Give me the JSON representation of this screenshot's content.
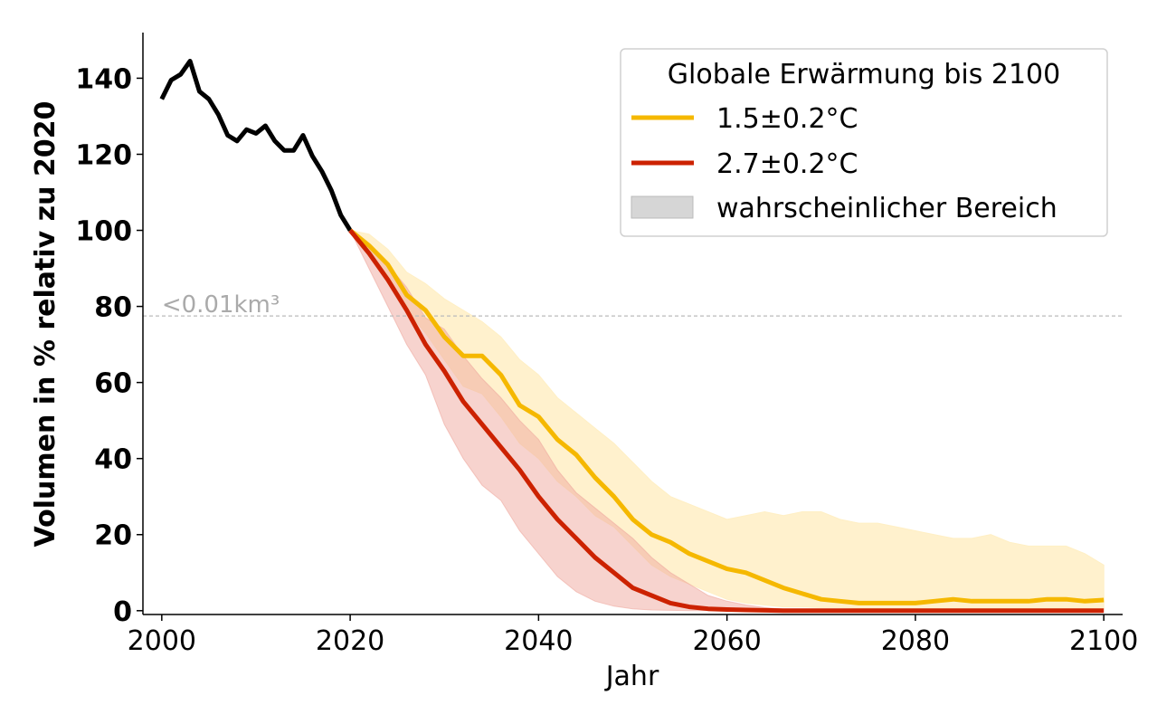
{
  "chart_data": {
    "type": "line",
    "xlabel": "Jahr",
    "ylabel": "Volumen in % relativ zu 2020",
    "xlim": [
      1998,
      2102
    ],
    "ylim": [
      -1,
      152
    ],
    "xticks": [
      2000,
      2020,
      2040,
      2060,
      2080,
      2100
    ],
    "yticks": [
      0,
      20,
      40,
      60,
      80,
      100,
      120,
      140
    ],
    "grid": false,
    "legend": {
      "title": "Globale Erwärmung bis 2100",
      "placement": "top-right",
      "entries": [
        {
          "label": "1.5±0.2°C",
          "color": "#f5b800",
          "kind": "line"
        },
        {
          "label": "2.7±0.2°C",
          "color": "#cc2200",
          "kind": "line"
        },
        {
          "label": "wahrscheinlicher Bereich",
          "color": "#d6d6d6",
          "kind": "patch"
        }
      ]
    },
    "annotation": {
      "text": "<0.01km³",
      "y": 77.5,
      "color": "#aaaaaa",
      "linestyle": "dashed"
    },
    "colors": {
      "observed": "#000000",
      "ssp15": "#f5b800",
      "ssp27": "#cc2200",
      "band15": "#ffefc4",
      "band27": "#efa89e",
      "overlap": "#f3c3a0"
    },
    "observed": {
      "x": [
        2000,
        2001,
        2002,
        2003,
        2004,
        2005,
        2006,
        2007,
        2008,
        2009,
        2010,
        2011,
        2012,
        2013,
        2014,
        2015,
        2016,
        2017,
        2018,
        2019,
        2020
      ],
      "y": [
        134.5,
        139.5,
        141,
        144.5,
        136.5,
        134.5,
        130.5,
        125,
        123.5,
        126.5,
        125.5,
        127.5,
        123.5,
        121,
        121,
        125,
        119.5,
        115.5,
        110.5,
        104,
        100
      ]
    },
    "series": [
      {
        "name": "1.5±0.2°C",
        "x": [
          2020,
          2022,
          2024,
          2026,
          2028,
          2030,
          2032,
          2034,
          2036,
          2038,
          2040,
          2042,
          2044,
          2046,
          2048,
          2050,
          2052,
          2054,
          2056,
          2058,
          2060,
          2062,
          2064,
          2066,
          2068,
          2070,
          2072,
          2074,
          2076,
          2078,
          2080,
          2082,
          2084,
          2086,
          2088,
          2090,
          2092,
          2094,
          2096,
          2098,
          2100
        ],
        "y": [
          100,
          96,
          91,
          83,
          79,
          72,
          67,
          67,
          62,
          54,
          51,
          45,
          41,
          35,
          30,
          24,
          20,
          18,
          15,
          13,
          11,
          10,
          8,
          6,
          4.5,
          3,
          2.5,
          2,
          2,
          2,
          2,
          2.5,
          3,
          2.5,
          2.5,
          2.5,
          2.5,
          3,
          3,
          2.5,
          2.8
        ],
        "upper": [
          100,
          99,
          95,
          89,
          86,
          82,
          79,
          76,
          72,
          66,
          62,
          56,
          52,
          48,
          44,
          39,
          34,
          30,
          28,
          26,
          24,
          25,
          26,
          25,
          26,
          26,
          24,
          23,
          23,
          22,
          21,
          20,
          19,
          19,
          20,
          18,
          17,
          17,
          17,
          15,
          12
        ],
        "lower": [
          100,
          94,
          86,
          79,
          73,
          66,
          59,
          57,
          51,
          44,
          40,
          34,
          30,
          25,
          22,
          17,
          12,
          9,
          7,
          5,
          3,
          2,
          1.5,
          1,
          1,
          0.8,
          0.8,
          0.6,
          0.6,
          0.5,
          0.5,
          0.5,
          0.5,
          0.5,
          0.5,
          0.5,
          0.5,
          0.5,
          0.5,
          0.5,
          0.5
        ]
      },
      {
        "name": "2.7±0.2°C",
        "x": [
          2020,
          2022,
          2024,
          2026,
          2028,
          2030,
          2032,
          2034,
          2036,
          2038,
          2040,
          2042,
          2044,
          2046,
          2048,
          2050,
          2052,
          2054,
          2056,
          2058,
          2060,
          2062,
          2064,
          2066,
          2068,
          2070,
          2075,
          2080,
          2085,
          2090,
          2095,
          2100
        ],
        "y": [
          100,
          94,
          87,
          79,
          70,
          63,
          55,
          49,
          43,
          37,
          30,
          24,
          19,
          14,
          10,
          6,
          4,
          2,
          1,
          0.5,
          0.3,
          0.2,
          0.1,
          0,
          0,
          0,
          0,
          0,
          0,
          0,
          0,
          0
        ],
        "upper": [
          100,
          96,
          91,
          85,
          77,
          74,
          67,
          61,
          56,
          50,
          45,
          37,
          31,
          27,
          23,
          19,
          14,
          10,
          7,
          4,
          2.5,
          1.5,
          0.8,
          0.4,
          0.2,
          0.1,
          0,
          0,
          0,
          0,
          0,
          0
        ],
        "lower": [
          100,
          90,
          80,
          70,
          62,
          49,
          40,
          33,
          29,
          21,
          15,
          9,
          5,
          2.5,
          1.2,
          0.5,
          0.2,
          0.1,
          0,
          0,
          0,
          0,
          0,
          0,
          0,
          0,
          0,
          0,
          0,
          0,
          0,
          0
        ]
      }
    ]
  }
}
